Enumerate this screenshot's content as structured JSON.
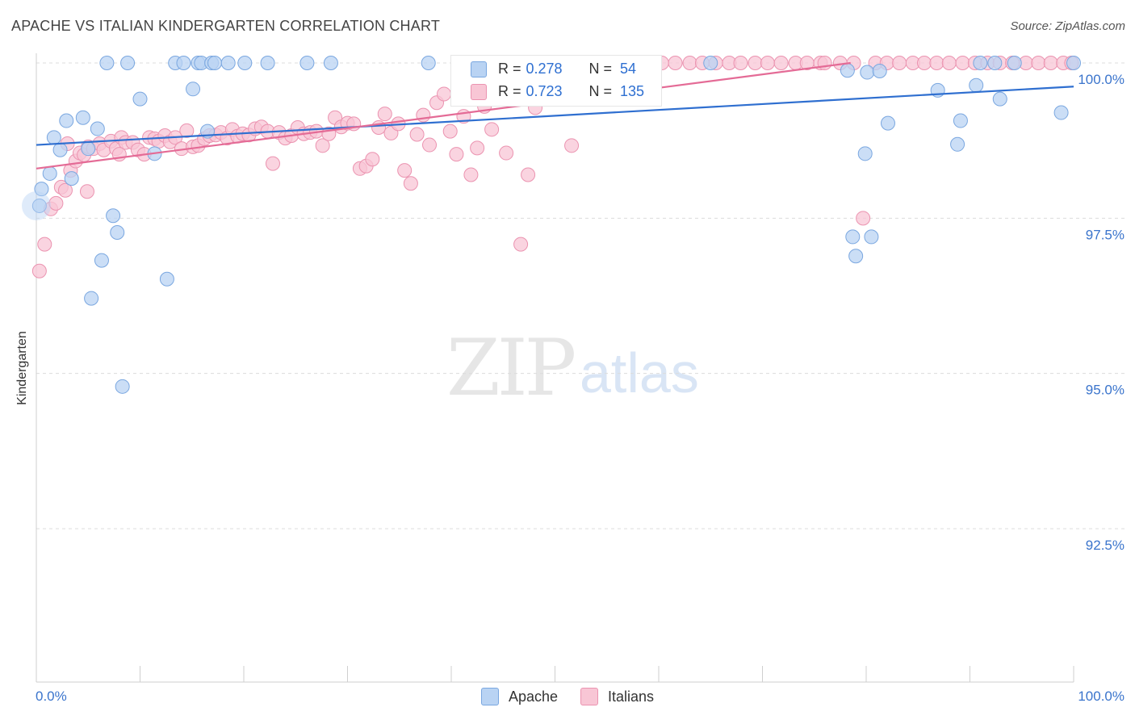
{
  "title": "APACHE VS ITALIAN KINDERGARTEN CORRELATION CHART",
  "source": "Source: ZipAtlas.com",
  "watermark": {
    "zip": "ZIP",
    "atlas": "atlas"
  },
  "legend": {
    "rows": [
      {
        "r_label": "R =",
        "r_value": "0.278",
        "n_label": "N =",
        "n_value": "54"
      },
      {
        "r_label": "R =",
        "r_value": "0.723",
        "n_label": "N =",
        "n_value": "135"
      }
    ]
  },
  "bottom_legend": {
    "apache": "Apache",
    "italians": "Italians"
  },
  "colors": {
    "apache_fill": "#b9d3f3",
    "apache_stroke": "#7aa7e0",
    "apache_line": "#2f6fd0",
    "italian_fill": "#f8c6d5",
    "italian_stroke": "#eb93b0",
    "italian_line": "#e46b96",
    "tick_label": "#3a74cc",
    "grid": "#dcdcdc"
  },
  "chart_data": {
    "type": "scatter",
    "title": "APACHE VS ITALIAN KINDERGARTEN CORRELATION CHART",
    "xlabel": "",
    "ylabel": "Kindergarten",
    "xlim": [
      0,
      100
    ],
    "ylim": [
      90.2,
      100.35
    ],
    "x_tick_labels": [
      "0.0%",
      "100.0%"
    ],
    "y_ticks": [
      {
        "value": 100.0,
        "label": "100.0%"
      },
      {
        "value": 97.5,
        "label": "97.5%"
      },
      {
        "value": 95.0,
        "label": "95.0%"
      },
      {
        "value": 92.5,
        "label": "92.5%"
      }
    ],
    "grid": true,
    "series": [
      {
        "name": "Apache",
        "trend": {
          "x": [
            0,
            100
          ],
          "y": [
            98.68,
            99.62
          ]
        },
        "points": [
          [
            0.3,
            97.7
          ],
          [
            0.5,
            97.97
          ],
          [
            1.3,
            98.22
          ],
          [
            1.7,
            98.8
          ],
          [
            2.3,
            98.6
          ],
          [
            2.9,
            99.07
          ],
          [
            3.4,
            98.14
          ],
          [
            4.5,
            99.12
          ],
          [
            5.0,
            98.62
          ],
          [
            5.3,
            96.21
          ],
          [
            5.9,
            98.94
          ],
          [
            6.3,
            96.82
          ],
          [
            7.4,
            97.54
          ],
          [
            7.8,
            97.27
          ],
          [
            8.3,
            94.79
          ],
          [
            6.8,
            100.0
          ],
          [
            8.8,
            100.0
          ],
          [
            10.0,
            99.42
          ],
          [
            11.4,
            98.54
          ],
          [
            12.6,
            96.52
          ],
          [
            13.4,
            100.0
          ],
          [
            14.2,
            100.0
          ],
          [
            15.1,
            99.58
          ],
          [
            15.6,
            100.0
          ],
          [
            15.9,
            100.0
          ],
          [
            16.5,
            98.9
          ],
          [
            16.9,
            100.0
          ],
          [
            17.2,
            100.0
          ],
          [
            18.5,
            100.0
          ],
          [
            20.1,
            100.0
          ],
          [
            22.3,
            100.0
          ],
          [
            26.1,
            100.0
          ],
          [
            28.4,
            100.0
          ],
          [
            37.8,
            100.0
          ],
          [
            44.8,
            100.0
          ],
          [
            65.0,
            100.0
          ],
          [
            78.2,
            99.88
          ],
          [
            80.1,
            99.85
          ],
          [
            80.5,
            97.2
          ],
          [
            78.7,
            97.2
          ],
          [
            79.0,
            96.89
          ],
          [
            81.3,
            99.87
          ],
          [
            79.9,
            98.54
          ],
          [
            82.1,
            99.03
          ],
          [
            86.9,
            99.56
          ],
          [
            88.8,
            98.69
          ],
          [
            89.1,
            99.07
          ],
          [
            90.6,
            99.64
          ],
          [
            91.0,
            100.0
          ],
          [
            92.4,
            100.0
          ],
          [
            92.9,
            99.42
          ],
          [
            94.3,
            100.0
          ],
          [
            98.8,
            99.2
          ],
          [
            100.0,
            100.0
          ]
        ]
      },
      {
        "name": "Italians",
        "trend": {
          "x": [
            0,
            78.5
          ],
          "y": [
            98.3,
            100.0
          ]
        },
        "points": [
          [
            0.3,
            96.65
          ],
          [
            0.8,
            97.08
          ],
          [
            1.4,
            97.65
          ],
          [
            1.9,
            97.74
          ],
          [
            2.4,
            98.0
          ],
          [
            2.8,
            97.95
          ],
          [
            3.3,
            98.27
          ],
          [
            3.8,
            98.42
          ],
          [
            4.2,
            98.55
          ],
          [
            4.6,
            98.52
          ],
          [
            5.0,
            98.65
          ],
          [
            5.5,
            98.62
          ],
          [
            6.1,
            98.7
          ],
          [
            6.5,
            98.6
          ],
          [
            7.2,
            98.74
          ],
          [
            7.7,
            98.62
          ],
          [
            8.2,
            98.8
          ],
          [
            8.6,
            98.72
          ],
          [
            9.3,
            98.72
          ],
          [
            9.8,
            98.6
          ],
          [
            10.4,
            98.53
          ],
          [
            10.9,
            98.8
          ],
          [
            11.4,
            98.78
          ],
          [
            11.8,
            98.74
          ],
          [
            12.4,
            98.83
          ],
          [
            12.9,
            98.73
          ],
          [
            13.4,
            98.8
          ],
          [
            14.0,
            98.62
          ],
          [
            14.5,
            98.91
          ],
          [
            15.1,
            98.65
          ],
          [
            15.6,
            98.67
          ],
          [
            16.2,
            98.78
          ],
          [
            16.7,
            98.83
          ],
          [
            17.3,
            98.84
          ],
          [
            17.8,
            98.88
          ],
          [
            18.4,
            98.79
          ],
          [
            18.9,
            98.93
          ],
          [
            19.4,
            98.82
          ],
          [
            19.9,
            98.86
          ],
          [
            20.5,
            98.84
          ],
          [
            21.1,
            98.94
          ],
          [
            21.7,
            98.97
          ],
          [
            22.3,
            98.9
          ],
          [
            22.8,
            98.38
          ],
          [
            23.4,
            98.88
          ],
          [
            24.0,
            98.79
          ],
          [
            24.6,
            98.83
          ],
          [
            25.2,
            98.96
          ],
          [
            25.8,
            98.86
          ],
          [
            26.4,
            98.88
          ],
          [
            27.0,
            98.9
          ],
          [
            27.6,
            98.67
          ],
          [
            28.2,
            98.86
          ],
          [
            28.8,
            99.12
          ],
          [
            29.4,
            98.97
          ],
          [
            30.0,
            99.03
          ],
          [
            30.6,
            99.02
          ],
          [
            31.2,
            98.3
          ],
          [
            31.8,
            98.34
          ],
          [
            32.4,
            98.45
          ],
          [
            33.0,
            98.96
          ],
          [
            33.6,
            99.18
          ],
          [
            34.2,
            98.87
          ],
          [
            34.9,
            99.02
          ],
          [
            35.5,
            98.27
          ],
          [
            36.1,
            98.06
          ],
          [
            36.7,
            98.85
          ],
          [
            37.3,
            99.16
          ],
          [
            37.9,
            98.68
          ],
          [
            38.6,
            99.36
          ],
          [
            39.3,
            99.5
          ],
          [
            39.9,
            98.9
          ],
          [
            40.5,
            98.53
          ],
          [
            41.2,
            99.14
          ],
          [
            41.9,
            98.2
          ],
          [
            42.5,
            98.63
          ],
          [
            43.2,
            99.3
          ],
          [
            43.9,
            98.93
          ],
          [
            44.6,
            99.47
          ],
          [
            45.3,
            98.55
          ],
          [
            46.0,
            100.0
          ],
          [
            46.7,
            97.08
          ],
          [
            47.4,
            98.2
          ],
          [
            48.1,
            99.28
          ],
          [
            48.8,
            100.0
          ],
          [
            49.5,
            100.0
          ],
          [
            50.2,
            99.55
          ],
          [
            50.9,
            100.0
          ],
          [
            51.6,
            98.67
          ],
          [
            52.3,
            100.0
          ],
          [
            53.0,
            100.0
          ],
          [
            53.8,
            100.0
          ],
          [
            54.6,
            100.0
          ],
          [
            55.4,
            100.0
          ],
          [
            56.2,
            100.0
          ],
          [
            57.0,
            100.0
          ],
          [
            57.8,
            100.0
          ],
          [
            59.0,
            100.0
          ],
          [
            60.3,
            100.0
          ],
          [
            61.6,
            100.0
          ],
          [
            63.0,
            100.0
          ],
          [
            64.2,
            100.0
          ],
          [
            65.5,
            100.0
          ],
          [
            66.8,
            100.0
          ],
          [
            67.9,
            100.0
          ],
          [
            69.3,
            100.0
          ],
          [
            70.5,
            100.0
          ],
          [
            71.8,
            100.0
          ],
          [
            73.2,
            100.0
          ],
          [
            74.3,
            100.0
          ],
          [
            75.6,
            100.0
          ],
          [
            76.0,
            100.0
          ],
          [
            77.5,
            100.0
          ],
          [
            78.8,
            100.0
          ],
          [
            79.7,
            97.5
          ],
          [
            80.9,
            100.0
          ],
          [
            82.0,
            100.0
          ],
          [
            83.2,
            100.0
          ],
          [
            84.5,
            100.0
          ],
          [
            85.6,
            100.0
          ],
          [
            86.8,
            100.0
          ],
          [
            88.0,
            100.0
          ],
          [
            89.3,
            100.0
          ],
          [
            90.5,
            100.0
          ],
          [
            91.7,
            100.0
          ],
          [
            92.9,
            100.0
          ],
          [
            94.1,
            100.0
          ],
          [
            95.4,
            100.0
          ],
          [
            96.6,
            100.0
          ],
          [
            97.8,
            100.0
          ],
          [
            99.0,
            100.0
          ],
          [
            99.8,
            100.0
          ],
          [
            3.0,
            98.7
          ],
          [
            4.9,
            97.93
          ],
          [
            8.0,
            98.53
          ]
        ]
      }
    ]
  }
}
